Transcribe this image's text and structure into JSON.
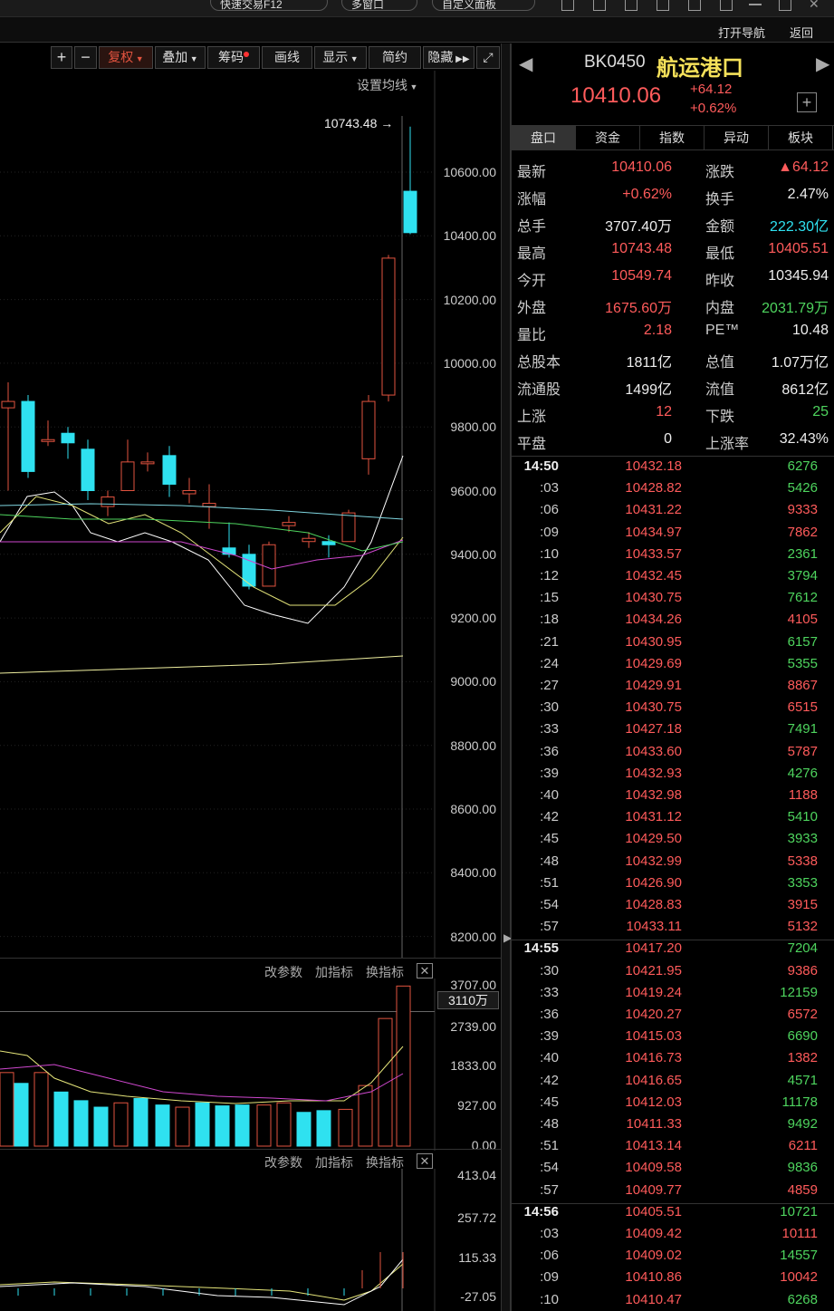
{
  "topbar": {
    "pill1": "快速交易F12",
    "pill2": "多窗口",
    "pill3": "自定义面板"
  },
  "nav": {
    "open_nav": "打开导航",
    "back": "返回"
  },
  "toolbar": {
    "plus": "+",
    "minus": "−",
    "fuquan": "复权",
    "diejia": "叠加",
    "chouma": "筹码",
    "huaxian": "画线",
    "xianshi": "显示",
    "jianyue": "简约",
    "yincang": "隐藏",
    "ma_settings": "设置均线"
  },
  "kline": {
    "high_marker": "10743.48",
    "yticks": [
      "10600.00",
      "10400.00",
      "10200.00",
      "10000.00",
      "9800.00",
      "9600.00",
      "9400.00",
      "9200.00",
      "9000.00",
      "8800.00",
      "8600.00",
      "8400.00",
      "8200.00"
    ]
  },
  "volume_panel": {
    "btn_params": "改参数",
    "btn_add": "加指标",
    "btn_switch": "换指标",
    "yticks": [
      "3707.00",
      "2739.00",
      "1833.00",
      "927.00",
      "0.00"
    ],
    "current": "3110万"
  },
  "macd_panel": {
    "btn_params": "改参数",
    "btn_add": "加指标",
    "btn_switch": "换指标",
    "yticks": [
      "413.04",
      "257.72",
      "115.33",
      "-27.05"
    ]
  },
  "quote": {
    "code": "BK0450",
    "name": "航运港口",
    "price": "10410.06",
    "change": "+64.12",
    "pct": "+0.62%",
    "tabs": [
      "盘口",
      "资金",
      "指数",
      "异动",
      "板块"
    ],
    "rows": [
      [
        {
          "l": "最新",
          "v": "10410.06",
          "c": "red"
        },
        {
          "l": "涨跌",
          "v": "▲64.12",
          "c": "red"
        }
      ],
      [
        {
          "l": "涨幅",
          "v": "+0.62%",
          "c": "red"
        },
        {
          "l": "换手",
          "v": "2.47%",
          "c": "white"
        }
      ],
      [
        {
          "l": "总手",
          "v": "3707.40万",
          "c": "white"
        },
        {
          "l": "金额",
          "v": "222.30亿",
          "c": "cyan"
        }
      ],
      [
        {
          "l": "最高",
          "v": "10743.48",
          "c": "red"
        },
        {
          "l": "最低",
          "v": "10405.51",
          "c": "red"
        }
      ],
      [
        {
          "l": "今开",
          "v": "10549.74",
          "c": "red"
        },
        {
          "l": "昨收",
          "v": "10345.94",
          "c": "white"
        }
      ],
      [
        {
          "l": "外盘",
          "v": "1675.60万",
          "c": "red"
        },
        {
          "l": "内盘",
          "v": "2031.79万",
          "c": "green"
        }
      ],
      [
        {
          "l": "量比",
          "v": "2.18",
          "c": "red"
        },
        {
          "l": "PE™",
          "v": "10.48",
          "c": "white"
        }
      ],
      [
        {
          "l": "总股本",
          "v": "1811亿",
          "c": "white"
        },
        {
          "l": "总值",
          "v": "1.07万亿",
          "c": "white"
        }
      ],
      [
        {
          "l": "流通股",
          "v": "1499亿",
          "c": "white"
        },
        {
          "l": "流值",
          "v": "8612亿",
          "c": "white"
        }
      ],
      [
        {
          "l": "上涨",
          "v": "12",
          "c": "red"
        },
        {
          "l": "下跌",
          "v": "25",
          "c": "green"
        }
      ],
      [
        {
          "l": "平盘",
          "v": "0",
          "c": "white"
        },
        {
          "l": "上涨率",
          "v": "32.43%",
          "c": "white"
        }
      ]
    ]
  },
  "ticks": [
    {
      "t": "14:50",
      "p": "10432.18",
      "v": "6276",
      "c": "green",
      "h": true
    },
    {
      "t": ":03",
      "p": "10428.82",
      "v": "5426",
      "c": "green"
    },
    {
      "t": ":06",
      "p": "10431.22",
      "v": "9333",
      "c": "red"
    },
    {
      "t": ":09",
      "p": "10434.97",
      "v": "7862",
      "c": "red"
    },
    {
      "t": ":10",
      "p": "10433.57",
      "v": "2361",
      "c": "green"
    },
    {
      "t": ":12",
      "p": "10432.45",
      "v": "3794",
      "c": "green"
    },
    {
      "t": ":15",
      "p": "10430.75",
      "v": "7612",
      "c": "green"
    },
    {
      "t": ":18",
      "p": "10434.26",
      "v": "4105",
      "c": "red"
    },
    {
      "t": ":21",
      "p": "10430.95",
      "v": "6157",
      "c": "green"
    },
    {
      "t": ":24",
      "p": "10429.69",
      "v": "5355",
      "c": "green"
    },
    {
      "t": ":27",
      "p": "10429.91",
      "v": "8867",
      "c": "red"
    },
    {
      "t": ":30",
      "p": "10430.75",
      "v": "6515",
      "c": "red"
    },
    {
      "t": ":33",
      "p": "10427.18",
      "v": "7491",
      "c": "green"
    },
    {
      "t": ":36",
      "p": "10433.60",
      "v": "5787",
      "c": "red"
    },
    {
      "t": ":39",
      "p": "10432.93",
      "v": "4276",
      "c": "green"
    },
    {
      "t": ":40",
      "p": "10432.98",
      "v": "1188",
      "c": "red"
    },
    {
      "t": ":42",
      "p": "10431.12",
      "v": "5410",
      "c": "green"
    },
    {
      "t": ":45",
      "p": "10429.50",
      "v": "3933",
      "c": "green"
    },
    {
      "t": ":48",
      "p": "10432.99",
      "v": "5338",
      "c": "red"
    },
    {
      "t": ":51",
      "p": "10426.90",
      "v": "3353",
      "c": "green"
    },
    {
      "t": ":54",
      "p": "10428.83",
      "v": "3915",
      "c": "red"
    },
    {
      "t": ":57",
      "p": "10433.11",
      "v": "5132",
      "c": "red"
    },
    {
      "t": "14:55",
      "p": "10417.20",
      "v": "7204",
      "c": "green",
      "h": true
    },
    {
      "t": ":30",
      "p": "10421.95",
      "v": "9386",
      "c": "red"
    },
    {
      "t": ":33",
      "p": "10419.24",
      "v": "12159",
      "c": "green"
    },
    {
      "t": ":36",
      "p": "10420.27",
      "v": "6572",
      "c": "red"
    },
    {
      "t": ":39",
      "p": "10415.03",
      "v": "6690",
      "c": "green"
    },
    {
      "t": ":40",
      "p": "10416.73",
      "v": "1382",
      "c": "red"
    },
    {
      "t": ":42",
      "p": "10416.65",
      "v": "4571",
      "c": "green"
    },
    {
      "t": ":45",
      "p": "10412.03",
      "v": "11178",
      "c": "green"
    },
    {
      "t": ":48",
      "p": "10411.33",
      "v": "9492",
      "c": "green"
    },
    {
      "t": ":51",
      "p": "10413.14",
      "v": "6211",
      "c": "red"
    },
    {
      "t": ":54",
      "p": "10409.58",
      "v": "9836",
      "c": "green"
    },
    {
      "t": ":57",
      "p": "10409.77",
      "v": "4859",
      "c": "red"
    },
    {
      "t": "14:56",
      "p": "10405.51",
      "v": "10721",
      "c": "green",
      "h": true
    },
    {
      "t": ":03",
      "p": "10409.42",
      "v": "10111",
      "c": "red"
    },
    {
      "t": ":06",
      "p": "10409.02",
      "v": "14557",
      "c": "green"
    },
    {
      "t": ":09",
      "p": "10410.86",
      "v": "10042",
      "c": "red"
    },
    {
      "t": ":10",
      "p": "10410.47",
      "v": "6268",
      "c": "green"
    }
  ],
  "colors": {
    "up": "#ff5b5b",
    "down": "#2fe1f0",
    "green": "#4ed45e",
    "bg": "#000000"
  }
}
